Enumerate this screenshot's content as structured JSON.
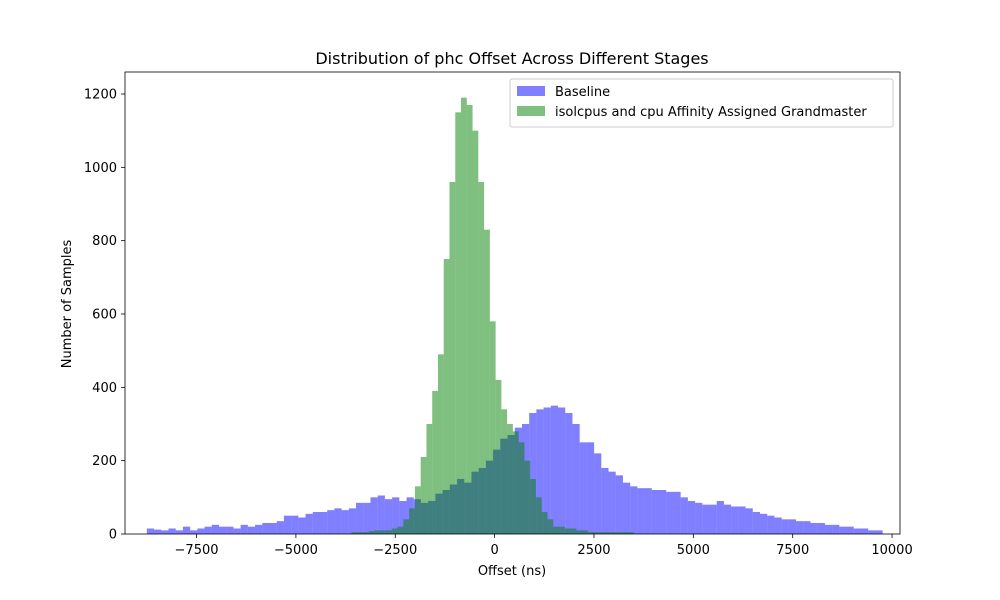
{
  "chart_data": {
    "type": "bar",
    "subtype": "histogram",
    "title": "Distribution of phc Offset Across Different Stages",
    "xlabel": "Offset (ns)",
    "ylabel": "Number of Samples",
    "xlim": [
      -9300,
      10200
    ],
    "ylim": [
      0,
      1260
    ],
    "xticks": [
      -7500,
      -5000,
      -2500,
      0,
      2500,
      5000,
      7500,
      10000
    ],
    "xtick_labels": [
      "−7500",
      "−5000",
      "−2500",
      "0",
      "2500",
      "5000",
      "7500",
      "10000"
    ],
    "yticks": [
      0,
      200,
      400,
      600,
      800,
      1000,
      1200
    ],
    "ytick_labels": [
      "0",
      "200",
      "400",
      "600",
      "800",
      "1000",
      "1200"
    ],
    "legend_position": "upper-right",
    "grid": false,
    "series": [
      {
        "name": "Baseline",
        "color": "#0000ff",
        "opacity": 0.5,
        "bin_start": -8750,
        "bin_width": 181.5,
        "values": [
          15,
          12,
          10,
          15,
          10,
          20,
          10,
          15,
          20,
          25,
          20,
          20,
          15,
          25,
          20,
          25,
          30,
          30,
          35,
          50,
          50,
          45,
          55,
          60,
          60,
          65,
          70,
          65,
          70,
          85,
          85,
          100,
          105,
          95,
          100,
          90,
          100,
          95,
          85,
          90,
          110,
          120,
          135,
          150,
          140,
          170,
          180,
          200,
          230,
          260,
          270,
          290,
          300,
          330,
          340,
          345,
          350,
          345,
          330,
          300,
          250,
          250,
          220,
          180,
          170,
          160,
          140,
          130,
          125,
          125,
          120,
          120,
          115,
          115,
          100,
          90,
          85,
          80,
          80,
          90,
          80,
          75,
          75,
          70,
          60,
          55,
          50,
          45,
          40,
          40,
          35,
          35,
          30,
          30,
          25,
          25,
          20,
          20,
          15,
          15,
          10,
          10
        ]
      },
      {
        "name": "isolcpus and cpu Affinity Assigned Grandmaster",
        "color": "#008000",
        "opacity": 0.5,
        "bin_start": -3600,
        "bin_width": 145,
        "values": [
          5,
          5,
          5,
          8,
          10,
          10,
          10,
          15,
          20,
          40,
          70,
          130,
          210,
          300,
          390,
          490,
          750,
          960,
          1150,
          1190,
          1170,
          1100,
          960,
          830,
          580,
          420,
          340,
          300,
          280,
          250,
          200,
          150,
          100,
          60,
          40,
          20,
          20,
          15,
          15,
          10,
          10,
          5,
          5,
          5,
          5,
          5,
          5,
          5,
          5
        ]
      }
    ]
  }
}
